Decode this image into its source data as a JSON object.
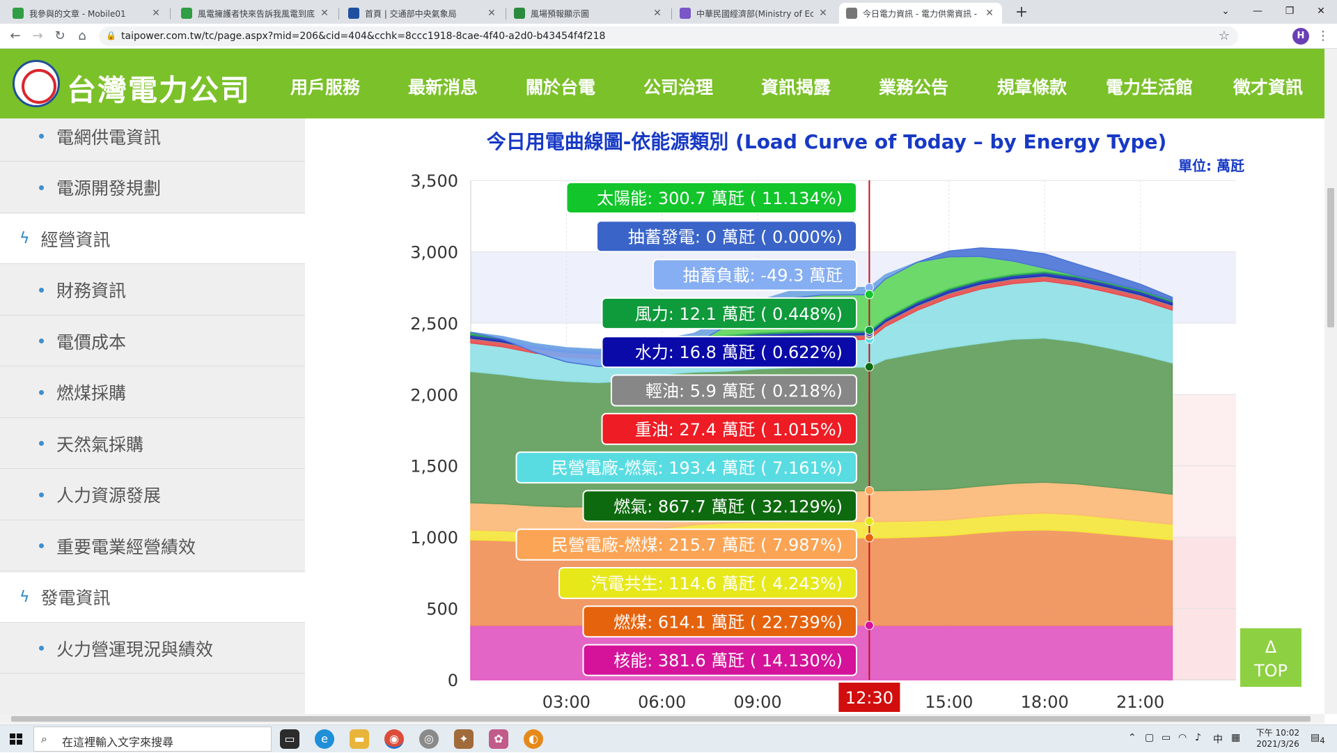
{
  "browser": {
    "tabs": [
      {
        "title": "我參與的文章 - Mobile01",
        "color": "#2f9e44",
        "active": false
      },
      {
        "title": "風電擁護者快來告訴我風電到底",
        "color": "#2f9e44",
        "active": false
      },
      {
        "title": "首頁 | 交通部中央氣象局",
        "color": "#1f4fa0",
        "active": false
      },
      {
        "title": "風場預報顯示圖",
        "color": "#2b8a3e",
        "active": false
      },
      {
        "title": "中華民國經濟部(Ministry of Eco",
        "color": "#7a56c8",
        "active": false
      },
      {
        "title": "今日電力資訊 - 電力供需資訊 - 臺",
        "color": "#777777",
        "active": true
      }
    ],
    "url": "taipower.com.tw/tc/page.aspx?mid=206&cid=404&cchk=8ccc1918-8cae-4f40-a2d0-b43454f4f218",
    "profile_initial": "H"
  },
  "site": {
    "logo_text": "台灣電力公司",
    "nav": [
      "用戶服務",
      "最新消息",
      "關於台電",
      "公司治理",
      "資訊揭露",
      "業務公告",
      "規章條款",
      "電力生活館",
      "徵才資訊"
    ]
  },
  "sidebar": {
    "items": [
      {
        "label": "電網供電資訊",
        "type": "sub"
      },
      {
        "label": "電源開發規劃",
        "type": "sub"
      },
      {
        "label": "經營資訊",
        "type": "section"
      },
      {
        "label": "財務資訊",
        "type": "sub"
      },
      {
        "label": "電價成本",
        "type": "sub"
      },
      {
        "label": "燃煤採購",
        "type": "sub"
      },
      {
        "label": "天然氣採購",
        "type": "sub"
      },
      {
        "label": "人力資源發展",
        "type": "sub"
      },
      {
        "label": "重要電業經營績效",
        "type": "sub"
      },
      {
        "label": "發電資訊",
        "type": "section"
      },
      {
        "label": "火力營運現況與績效",
        "type": "sub"
      }
    ]
  },
  "chart_data": {
    "type": "area",
    "title": "今日用電曲線圖-依能源類別 (Load Curve of Today – by Energy Type)",
    "unit_label": "單位: 萬瓩",
    "y_ticks": [
      "0",
      "500",
      "1,000",
      "1,500",
      "2,000",
      "2,500",
      "3,000",
      "3,500"
    ],
    "x_ticks": [
      "03:00",
      "06:00",
      "09:00",
      "15:00",
      "18:00",
      "21:00"
    ],
    "ylim": [
      0,
      3500
    ],
    "xlim_hours": [
      0,
      24
    ],
    "cursor_label": "12:30",
    "cursor_hour": 12.5,
    "x_hours": [
      0,
      1,
      2,
      3,
      4,
      5,
      6,
      7,
      8,
      9,
      10,
      11,
      12,
      12.5,
      13,
      14,
      15,
      16,
      17,
      18,
      19,
      20,
      21,
      22
    ],
    "series": [
      {
        "name": "核能",
        "color": "#e056c2",
        "values": [
          381,
          381,
          381,
          381,
          381,
          381,
          381,
          381,
          381,
          381,
          381,
          381,
          381,
          381.6,
          381,
          381,
          381,
          381,
          381,
          381,
          381,
          381,
          381,
          381
        ]
      },
      {
        "name": "燃煤",
        "color": "#ef9158",
        "values": [
          600,
          595,
          585,
          580,
          580,
          585,
          600,
          610,
          614,
          614,
          614,
          614,
          614,
          614.1,
          614,
          620,
          630,
          650,
          665,
          670,
          660,
          640,
          620,
          600
        ]
      },
      {
        "name": "汽電共生",
        "color": "#f4e73a",
        "values": [
          70,
          68,
          66,
          65,
          66,
          68,
          80,
          95,
          105,
          110,
          112,
          114,
          114,
          114.6,
          115,
          112,
          110,
          112,
          115,
          118,
          118,
          115,
          112,
          110
        ]
      },
      {
        "name": "民營電廠-燃煤",
        "color": "#fbb877",
        "values": [
          190,
          190,
          188,
          186,
          186,
          186,
          190,
          200,
          208,
          212,
          214,
          215,
          215,
          215.7,
          216,
          216,
          216,
          216,
          216,
          216,
          215,
          215,
          215,
          210
        ]
      },
      {
        "name": "燃氣",
        "color": "#5e9c5a",
        "values": [
          920,
          905,
          890,
          880,
          870,
          875,
          890,
          870,
          855,
          862,
          866,
          867,
          867,
          867.7,
          920,
          960,
          990,
          1000,
          1010,
          1010,
          995,
          975,
          950,
          920
        ]
      },
      {
        "name": "民營電廠-燃氣",
        "color": "#8fe0e6",
        "values": [
          200,
          195,
          180,
          170,
          168,
          170,
          180,
          188,
          192,
          193,
          193,
          193,
          193,
          193.4,
          230,
          300,
          350,
          380,
          390,
          400,
          395,
          390,
          385,
          370
        ]
      },
      {
        "name": "重油",
        "color": "#e74d4d",
        "values": [
          30,
          29,
          28,
          28,
          28,
          28,
          28,
          28,
          28,
          28,
          28,
          28,
          27,
          27.4,
          28,
          30,
          30,
          30,
          30,
          30,
          30,
          30,
          30,
          30
        ]
      },
      {
        "name": "輕油",
        "color": "#8a8a8a",
        "values": [
          5,
          5,
          5,
          5,
          5,
          5,
          5,
          5,
          6,
          6,
          6,
          6,
          6,
          5.9,
          6,
          6,
          6,
          6,
          6,
          6,
          6,
          6,
          6,
          6
        ]
      },
      {
        "name": "水力",
        "color": "#1d2db8",
        "values": [
          20,
          20,
          18,
          18,
          18,
          18,
          18,
          18,
          17,
          17,
          17,
          17,
          17,
          16.8,
          17,
          20,
          20,
          20,
          20,
          22,
          22,
          22,
          22,
          22
        ]
      },
      {
        "name": "風力",
        "color": "#29a35a",
        "values": [
          20,
          18,
          16,
          15,
          14,
          14,
          13,
          13,
          12,
          12,
          12,
          12,
          12,
          12.1,
          12,
          12,
          12,
          12,
          12,
          12,
          12,
          12,
          12,
          12
        ]
      },
      {
        "name": "太陽能",
        "color": "#5ed65b",
        "values": [
          0,
          0,
          0,
          0,
          0,
          0,
          0,
          20,
          120,
          220,
          280,
          300,
          301,
          300.7,
          300,
          270,
          220,
          160,
          90,
          20,
          0,
          0,
          0,
          0
        ]
      },
      {
        "name": "抽蓄負載",
        "color": "#7aa6ef",
        "values": [
          0,
          -20,
          -60,
          -100,
          -120,
          -120,
          -100,
          -80,
          -60,
          -55,
          -50,
          -50,
          -49,
          -49.3,
          -30,
          0,
          0,
          0,
          0,
          0,
          0,
          0,
          0,
          0
        ]
      },
      {
        "name": "抽蓄發電",
        "color": "#4a74d6",
        "values": [
          0,
          0,
          0,
          0,
          0,
          0,
          0,
          0,
          0,
          0,
          0,
          0,
          0,
          0,
          0,
          0,
          40,
          60,
          80,
          100,
          80,
          60,
          40,
          20
        ]
      }
    ],
    "tooltip": [
      {
        "text": "太陽能: 300.7 萬瓩 ( 11.134%)",
        "color": "#11c52a"
      },
      {
        "text": "抽蓄發電: 0 萬瓩 ( 0.000%)",
        "color": "#3a64c8"
      },
      {
        "text": "抽蓄負載: -49.3 萬瓩",
        "color": "#86aef2"
      },
      {
        "text": "風力: 12.1 萬瓩 ( 0.448%)",
        "color": "#0f9a3b"
      },
      {
        "text": "水力: 16.8 萬瓩 ( 0.622%)",
        "color": "#0a0aa8"
      },
      {
        "text": "輕油: 5.9 萬瓩 ( 0.218%)",
        "color": "#878787"
      },
      {
        "text": "重油: 27.4 萬瓩 ( 1.015%)",
        "color": "#ee1c24"
      },
      {
        "text": "民營電廠-燃氣: 193.4 萬瓩 ( 7.161%)",
        "color": "#58dce2"
      },
      {
        "text": "燃氣: 867.7 萬瓩 ( 32.129%)",
        "color": "#0e6a0e"
      },
      {
        "text": "民營電廠-燃煤: 215.7 萬瓩 ( 7.987%)",
        "color": "#fba455"
      },
      {
        "text": "汽電共生: 114.6 萬瓩 ( 4.243%)",
        "color": "#e7e81a"
      },
      {
        "text": "燃煤: 614.1 萬瓩 ( 22.739%)",
        "color": "#e6630e"
      },
      {
        "text": "核能: 381.6 萬瓩 ( 14.130%)",
        "color": "#d4139a"
      }
    ]
  },
  "top_button": {
    "arrow": "Δ",
    "label": "TOP"
  },
  "taskbar": {
    "search_placeholder": "在這裡輸入文字來搜尋",
    "ime": "中",
    "time": "下午 10:02",
    "date": "2021/3/26",
    "notif_count": "4"
  }
}
